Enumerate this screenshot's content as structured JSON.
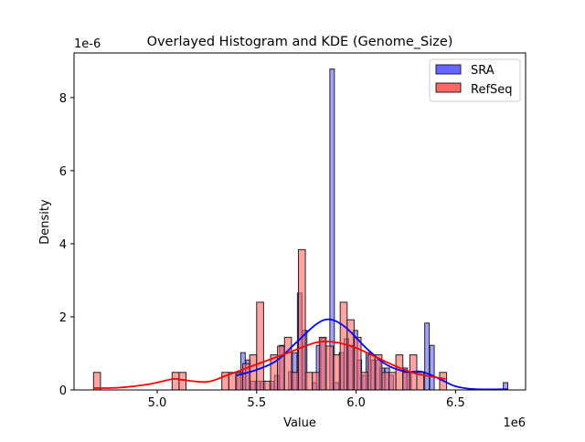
{
  "chart_data": {
    "type": "bar",
    "title": "Overlayed Histogram and KDE (Genome_Size)",
    "xlabel": "Value",
    "ylabel": "Density",
    "x_offset_label": "1e6",
    "y_offset_label": "1e-6",
    "xlim": [
      4.582,
      6.852
    ],
    "ylim": [
      0,
      9.22
    ],
    "xticks": [
      5.0,
      5.5,
      6.0,
      6.5
    ],
    "xtick_labels": [
      "5.0",
      "5.5",
      "6.0",
      "6.5"
    ],
    "yticks": [
      0,
      2,
      4,
      6,
      8
    ],
    "ytick_labels": [
      "0",
      "2",
      "4",
      "6",
      "8"
    ],
    "grid": false,
    "legend_position": "top-right",
    "series": [
      {
        "name": "SRA",
        "color": "#0000ff",
        "bar_color": "#6666ff",
        "bin_width": 0.0227,
        "bins": [
          [
            5.4,
            0.48
          ],
          [
            5.42,
            1.02
          ],
          [
            5.445,
            0.82
          ],
          [
            5.47,
            0.24
          ],
          [
            5.495,
            0.24
          ],
          [
            5.52,
            0.24
          ],
          [
            5.565,
            0.24
          ],
          [
            5.59,
            0.4
          ],
          [
            5.615,
            1.22
          ],
          [
            5.66,
            0.5
          ],
          [
            5.68,
            1.02
          ],
          [
            5.705,
            2.65
          ],
          [
            5.73,
            1.63
          ],
          [
            5.78,
            0.2
          ],
          [
            5.8,
            1.22
          ],
          [
            5.822,
            1.42
          ],
          [
            5.868,
            8.78
          ],
          [
            5.89,
            0.2
          ],
          [
            5.915,
            1.02
          ],
          [
            5.94,
            1.4
          ],
          [
            5.96,
            1.22
          ],
          [
            5.985,
            1.63
          ],
          [
            6.005,
            0.82
          ],
          [
            6.03,
            0.4
          ],
          [
            6.05,
            1.02
          ],
          [
            6.075,
            0.82
          ],
          [
            6.1,
            0.82
          ],
          [
            6.12,
            0.6
          ],
          [
            6.145,
            0.6
          ],
          [
            6.165,
            0.4
          ],
          [
            6.235,
            0.6
          ],
          [
            6.255,
            0.5
          ],
          [
            6.345,
            1.83
          ],
          [
            6.37,
            1.22
          ],
          [
            6.74,
            0.2
          ]
        ],
        "kde": [
          [
            5.4,
            0.4
          ],
          [
            5.5,
            0.55
          ],
          [
            5.6,
            0.8
          ],
          [
            5.7,
            1.3
          ],
          [
            5.8,
            1.8
          ],
          [
            5.87,
            1.93
          ],
          [
            5.95,
            1.7
          ],
          [
            6.05,
            1.15
          ],
          [
            6.15,
            0.7
          ],
          [
            6.25,
            0.5
          ],
          [
            6.33,
            0.5
          ],
          [
            6.42,
            0.3
          ],
          [
            6.5,
            0.1
          ],
          [
            6.6,
            0.02
          ],
          [
            6.76,
            0.02
          ]
        ]
      },
      {
        "name": "RefSeq",
        "color": "#ff0000",
        "bar_color": "#ff6666",
        "bin_width": 0.035,
        "bins": [
          [
            4.68,
            0.48
          ],
          [
            5.075,
            0.48
          ],
          [
            5.11,
            0.48
          ],
          [
            5.325,
            0.48
          ],
          [
            5.36,
            0.48
          ],
          [
            5.395,
            0.48
          ],
          [
            5.43,
            0.72
          ],
          [
            5.465,
            0.96
          ],
          [
            5.5,
            2.4
          ],
          [
            5.535,
            0.24
          ],
          [
            5.57,
            0.96
          ],
          [
            5.605,
            1.2
          ],
          [
            5.64,
            1.44
          ],
          [
            5.675,
            0.48
          ],
          [
            5.71,
            3.84
          ],
          [
            5.745,
            0.48
          ],
          [
            5.78,
            0.48
          ],
          [
            5.815,
            1.44
          ],
          [
            5.85,
            1.2
          ],
          [
            5.885,
            0.96
          ],
          [
            5.92,
            2.4
          ],
          [
            5.955,
            1.92
          ],
          [
            5.99,
            1.44
          ],
          [
            6.025,
            0.48
          ],
          [
            6.06,
            0.96
          ],
          [
            6.095,
            0.96
          ],
          [
            6.13,
            0.48
          ],
          [
            6.165,
            0.48
          ],
          [
            6.2,
            0.96
          ],
          [
            6.235,
            0.48
          ],
          [
            6.27,
            0.96
          ],
          [
            6.305,
            0.48
          ],
          [
            6.42,
            0.48
          ]
        ],
        "kde": [
          [
            4.68,
            0.05
          ],
          [
            4.8,
            0.06
          ],
          [
            4.95,
            0.15
          ],
          [
            5.08,
            0.3
          ],
          [
            5.12,
            0.28
          ],
          [
            5.25,
            0.22
          ],
          [
            5.35,
            0.4
          ],
          [
            5.5,
            0.7
          ],
          [
            5.65,
            1.0
          ],
          [
            5.8,
            1.3
          ],
          [
            5.9,
            1.3
          ],
          [
            6.0,
            1.15
          ],
          [
            6.1,
            0.9
          ],
          [
            6.2,
            0.65
          ],
          [
            6.3,
            0.45
          ],
          [
            6.45,
            0.3
          ]
        ]
      }
    ]
  }
}
